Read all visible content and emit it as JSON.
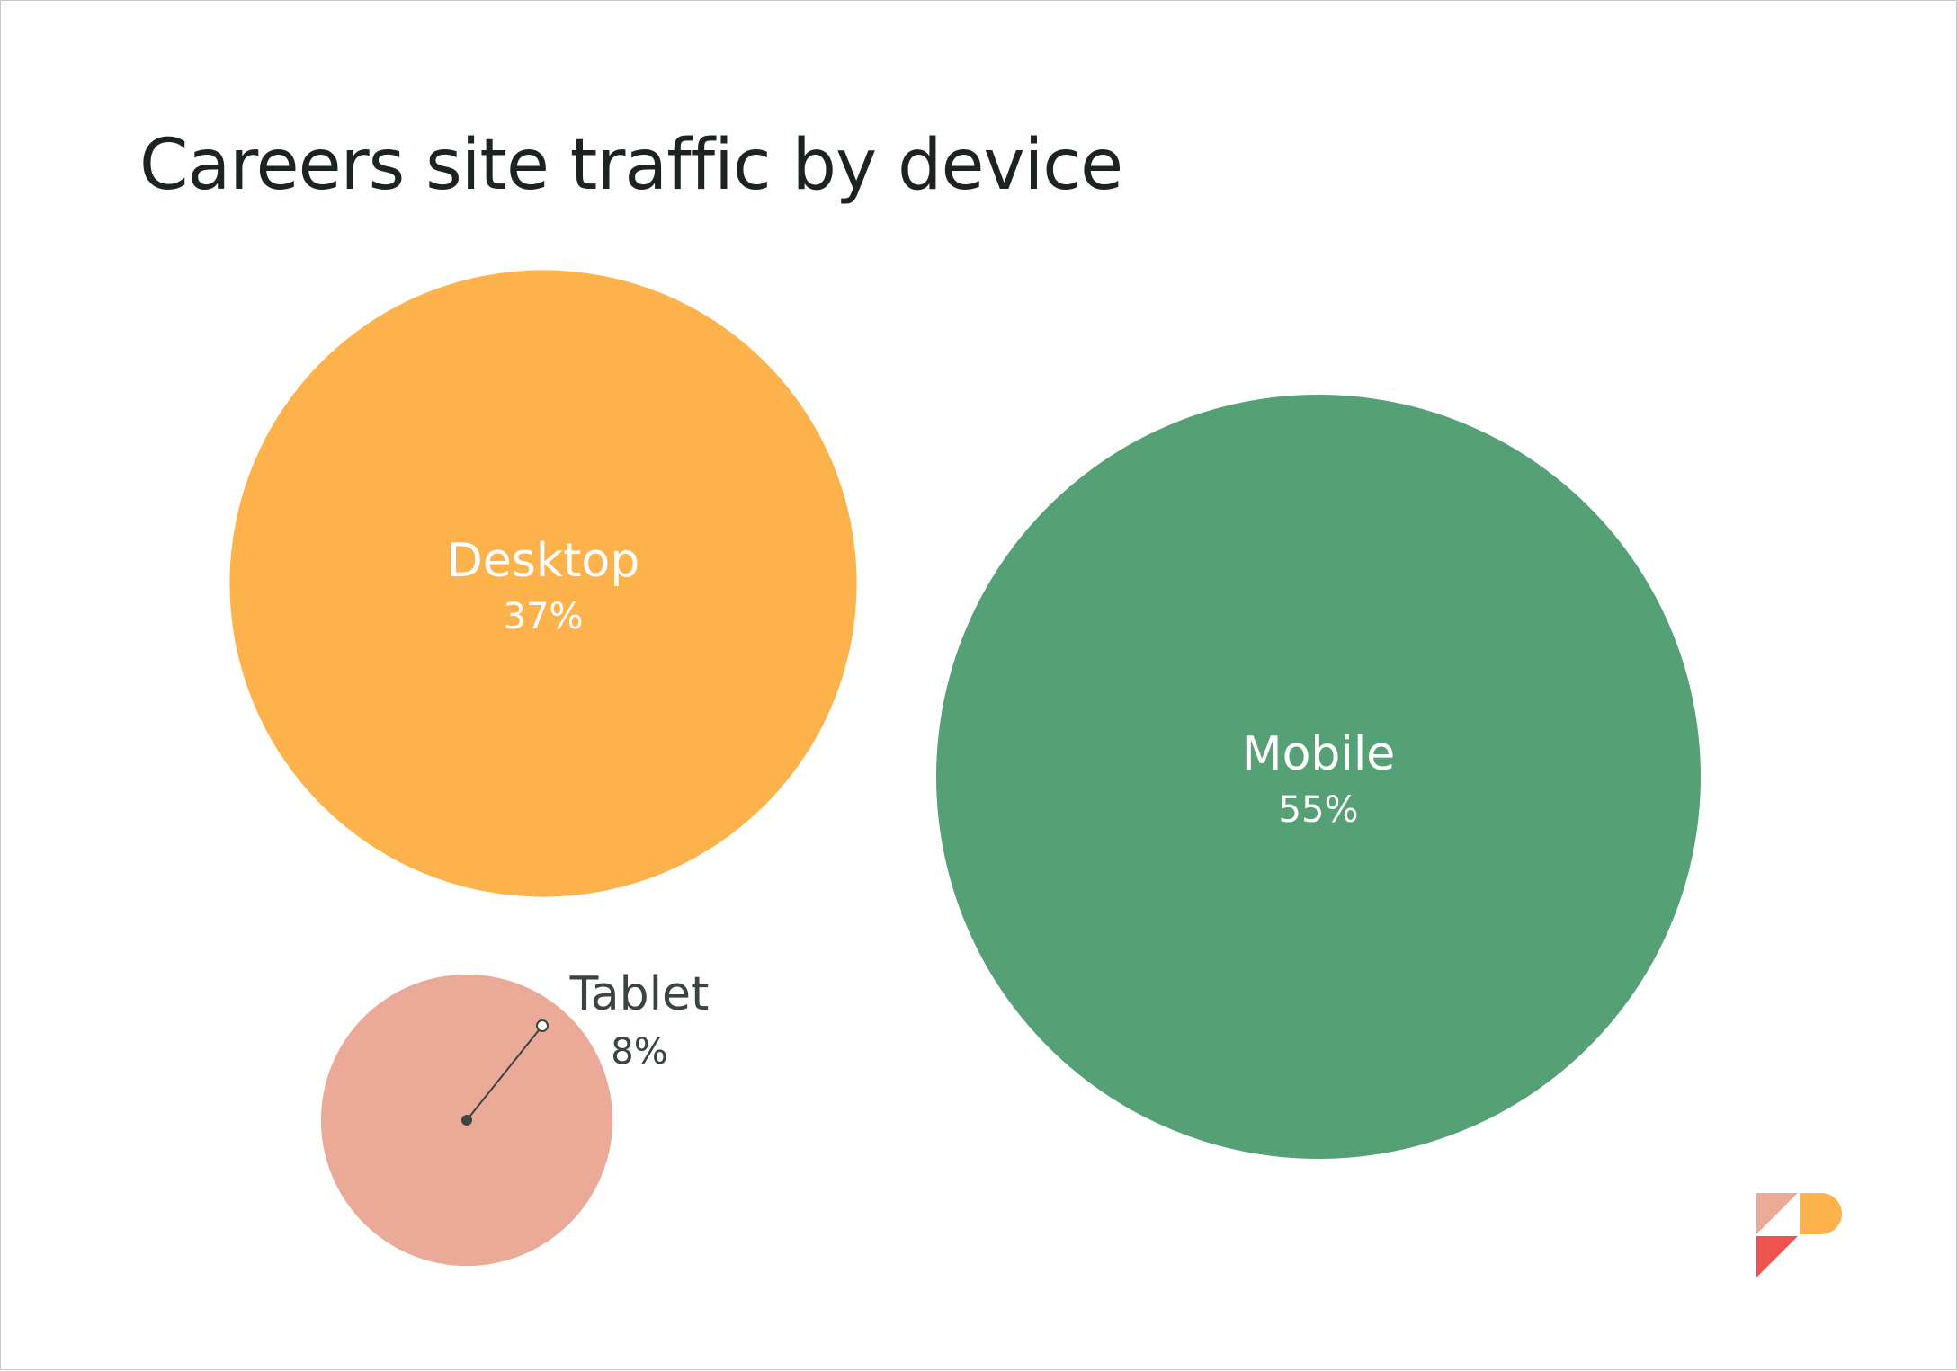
{
  "chart_data": {
    "type": "bubble",
    "title": "Careers site traffic by device",
    "unit": "%",
    "series": [
      {
        "name": "Desktop",
        "value": 37,
        "label": "37%",
        "color": "#FDB24B",
        "label_color": "#ffffff"
      },
      {
        "name": "Mobile",
        "value": 55,
        "label": "55%",
        "color": "#56A076",
        "label_color": "#ffffff"
      },
      {
        "name": "Tablet",
        "value": 8,
        "label": "8%",
        "color": "#EBAA98",
        "label_color": "#3a4540",
        "label_outside": true
      }
    ]
  },
  "logo": {
    "colors": {
      "salmon": "#EBAA98",
      "orange": "#FDB24B",
      "red": "#EE5350"
    }
  }
}
